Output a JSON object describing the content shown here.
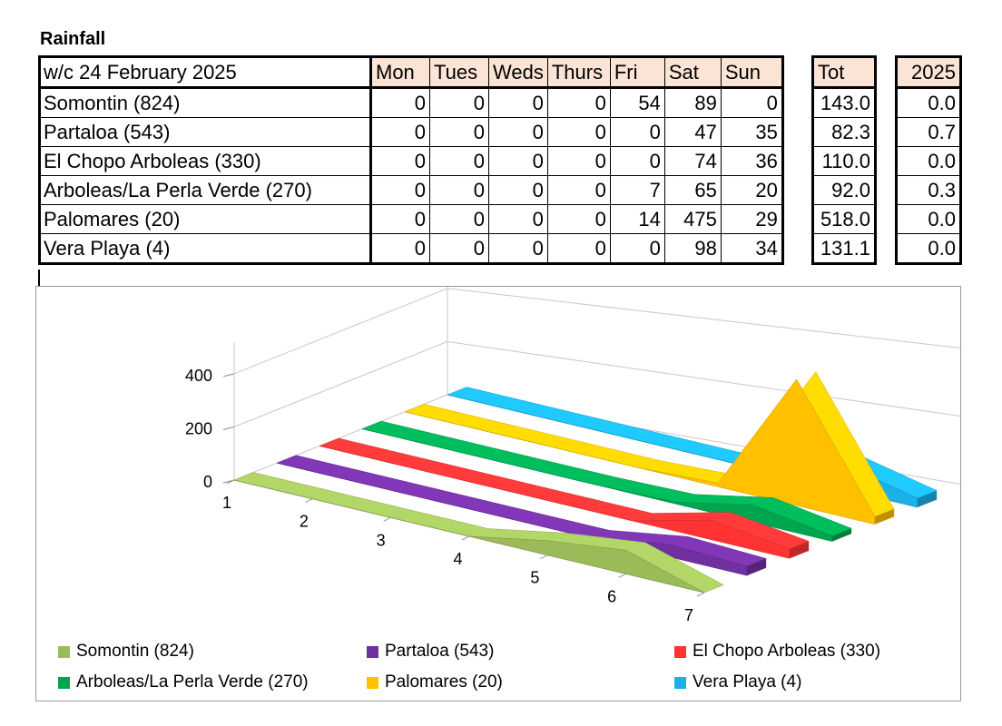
{
  "title": "Rainfall",
  "table": {
    "week_label": "w/c 24 February  2025",
    "days": [
      "Mon",
      "Tues",
      "Weds",
      "Thurs",
      "Fri",
      "Sat",
      "Sun"
    ],
    "tot_header": "Tot",
    "year_header": "2025",
    "rows": [
      {
        "name": "Somontin (824)",
        "values": [
          "0",
          "0",
          "0",
          "0",
          "54",
          "89",
          "0"
        ],
        "tot": "143.0",
        "year": "0.0"
      },
      {
        "name": "Partaloa (543)",
        "values": [
          "0",
          "0",
          "0",
          "0",
          "0",
          "47",
          "35"
        ],
        "tot": "82.3",
        "year": "0.7"
      },
      {
        "name": "El Chopo Arboleas (330)",
        "values": [
          "0",
          "0",
          "0",
          "0",
          "0",
          "74",
          "36"
        ],
        "tot": "110.0",
        "year": "0.0"
      },
      {
        "name": "Arboleas/La Perla Verde (270)",
        "values": [
          "0",
          "0",
          "0",
          "0",
          "7",
          "65",
          "20"
        ],
        "tot": "92.0",
        "year": "0.3"
      },
      {
        "name": "Palomares (20)",
        "values": [
          "0",
          "0",
          "0",
          "0",
          "14",
          "475",
          "29"
        ],
        "tot": "518.0",
        "year": "0.0"
      },
      {
        "name": "Vera Playa (4)",
        "values": [
          "0",
          "0",
          "0",
          "0",
          "0",
          "98",
          "34"
        ],
        "tot": "131.1",
        "year": "0.0"
      }
    ]
  },
  "chart_data": {
    "type": "area",
    "categories": [
      "1",
      "2",
      "3",
      "4",
      "5",
      "6",
      "7"
    ],
    "yticks": [
      "0",
      "200",
      "400"
    ],
    "ylim": [
      0,
      450
    ],
    "grid": true,
    "legend_position": "bottom",
    "series": [
      {
        "name": "Somontin (824)",
        "values": [
          0,
          0,
          0,
          0,
          54,
          89,
          0
        ],
        "color": "#9bbb59"
      },
      {
        "name": "Partaloa (543)",
        "values": [
          0,
          0,
          0,
          0,
          0,
          47,
          35
        ],
        "color": "#7030a0"
      },
      {
        "name": "El Chopo Arboleas (330)",
        "values": [
          0,
          0,
          0,
          0,
          0,
          74,
          36
        ],
        "color": "#ff3333"
      },
      {
        "name": "Arboleas/La Perla Verde (270)",
        "values": [
          0,
          0,
          0,
          0,
          7,
          65,
          20
        ],
        "color": "#00a550"
      },
      {
        "name": "Palomares (20)",
        "values": [
          0,
          0,
          0,
          0,
          14,
          475,
          29
        ],
        "color": "#ffc000"
      },
      {
        "name": "Vera Playa (4)",
        "values": [
          0,
          0,
          0,
          0,
          0,
          98,
          34
        ],
        "color": "#1ab0e8"
      }
    ]
  }
}
